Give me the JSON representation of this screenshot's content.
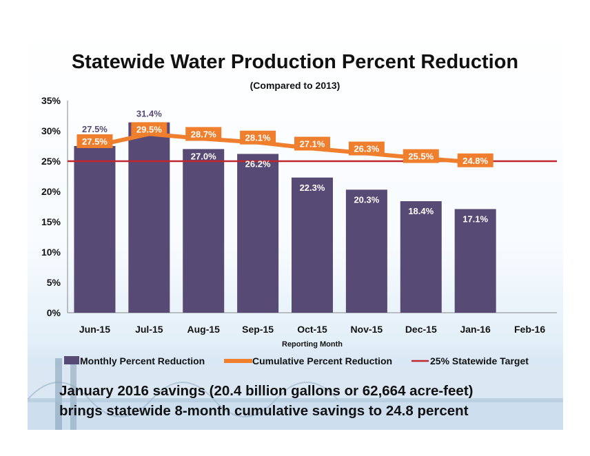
{
  "chart_data": {
    "type": "bar",
    "title": "Statewide Water Production Percent Reduction",
    "subtitle": "(Compared to 2013)",
    "xlabel": "Reporting Month",
    "ylabel": "",
    "ylim": [
      0,
      35
    ],
    "yticks": [
      "0%",
      "5%",
      "10%",
      "15%",
      "20%",
      "25%",
      "30%",
      "35%"
    ],
    "categories": [
      "Jun-15",
      "Jul-15",
      "Aug-15",
      "Sep-15",
      "Oct-15",
      "Nov-15",
      "Dec-15",
      "Jan-16",
      "Feb-16"
    ],
    "series": [
      {
        "name": "Monthly Percent Reduction",
        "kind": "bar",
        "color": "#574a75",
        "values": [
          27.5,
          31.4,
          27.0,
          26.2,
          22.3,
          20.3,
          18.4,
          17.1,
          null
        ],
        "labels": [
          "27.5%",
          "31.4%",
          "27.0%",
          "26.2%",
          "22.3%",
          "20.3%",
          "18.4%",
          "17.1%",
          ""
        ]
      },
      {
        "name": "Cumulative Percent Reduction",
        "kind": "line",
        "color": "#f07f2d",
        "values": [
          27.5,
          29.5,
          28.7,
          28.1,
          27.1,
          26.3,
          25.5,
          24.8,
          null
        ],
        "labels": [
          "27.5%",
          "29.5%",
          "28.7%",
          "28.1%",
          "27.1%",
          "26.3%",
          "25.5%",
          "24.8%",
          ""
        ]
      },
      {
        "name": "25% Statewide Target",
        "kind": "reference-line",
        "color": "#c0262d",
        "value": 25
      }
    ],
    "legend_position": "bottom",
    "grid": false
  },
  "caption": {
    "line1": "January 2016 savings (20.4 billion gallons or 62,664 acre-feet)",
    "line2": "brings statewide 8-month cumulative savings to 24.8 percent"
  },
  "colors": {
    "bar": "#574a75",
    "line": "#f07f2d",
    "target": "#c0262d",
    "bar_label_light": "#ffffff",
    "bar_label_dark": "#574a75"
  }
}
